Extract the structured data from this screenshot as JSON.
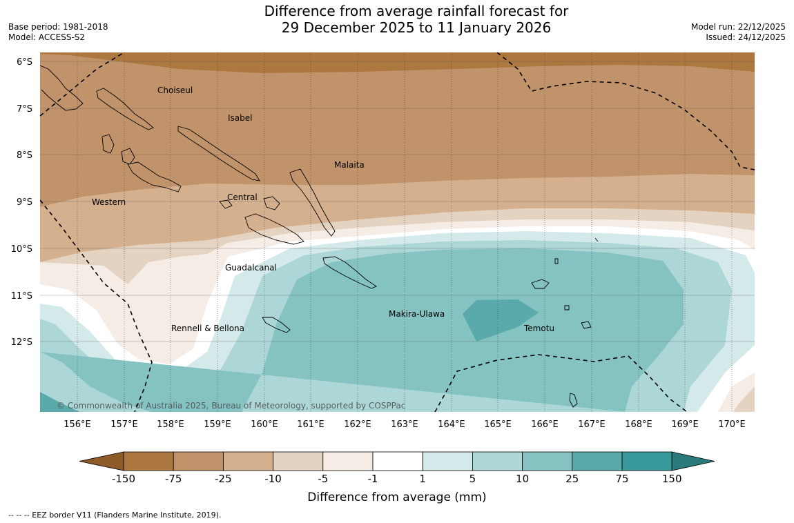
{
  "header": {
    "title_line1": "Difference from average rainfall forecast for",
    "title_line2": "29 December 2025 to 11 January 2026",
    "base_period": "Base period: 1981-2018",
    "model": "Model: ACCESS-S2",
    "model_run": "Model run: 22/12/2025",
    "issued": "Issued: 24/12/2025"
  },
  "map": {
    "lat_labels": [
      "6°S",
      "7°S",
      "8°S",
      "9°S",
      "10°S",
      "11°S",
      "12°S"
    ],
    "lon_labels": [
      "156°E",
      "157°E",
      "158°E",
      "159°E",
      "160°E",
      "161°E",
      "162°E",
      "163°E",
      "164°E",
      "165°E",
      "166°E",
      "167°E",
      "168°E",
      "169°E",
      "170°E"
    ],
    "regions": {
      "choiseul": "Choiseul",
      "isabel": "Isabel",
      "malaita": "Malaita",
      "central": "Central",
      "western": "Western",
      "guadalcanal": "Guadalcanal",
      "makira": "Makira-Ulawa",
      "temotu": "Temotu",
      "rennell": "Rennell & Bellona"
    },
    "copyright": "© Commonwealth of Australia 2025, Bureau of Meteorology, supported by COSPPac"
  },
  "colorbar": {
    "labels": [
      "-150",
      "-75",
      "-25",
      "-10",
      "-5",
      "-1",
      "1",
      "5",
      "10",
      "25",
      "75",
      "150"
    ],
    "colors": [
      "#8f5a2a",
      "#ad7740",
      "#c0936a",
      "#d4b08e",
      "#e5d3c2",
      "#f5ece6",
      "#ffffff",
      "#d4eaea",
      "#add6d7",
      "#84c3c2",
      "#5aaaab",
      "#35999a",
      "#2b7a7b"
    ],
    "title": "Difference from average (mm)"
  },
  "footnote": "--  --  -- EEZ border V11 (Flanders Marine Institute, 2019)."
}
